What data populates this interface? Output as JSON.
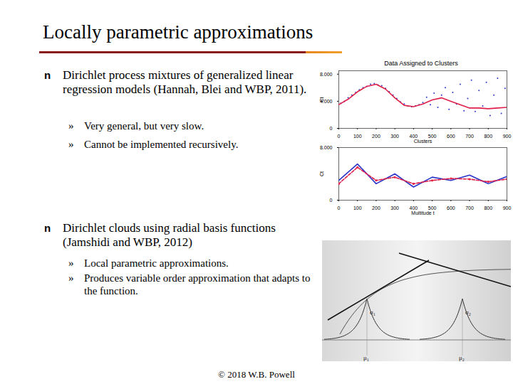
{
  "slide": {
    "title": "Locally parametric approximations",
    "bullet": "n",
    "sub_bullet": "»",
    "bullets": [
      {
        "text": "Dirichlet process mixtures of generalized linear regression models (Hannah, Blei and WBP, 2011).",
        "sub": [
          "Very general, but very slow.",
          "Cannot be implemented recursively."
        ]
      },
      {
        "text": "Dirichlet clouds using radial basis functions (Jamshidi and WBP, 2012)",
        "sub": [
          "Local parametric approximations.",
          "Produces variable order approximation that adapts to the function."
        ]
      }
    ],
    "footer": "© 2018 W.B. Powell"
  },
  "chart_data": [
    {
      "type": "scatter",
      "title": "Data Assigned to Clusters",
      "xlabel": "Clusters",
      "ylabel": "Ct",
      "xlim": [
        0,
        900
      ],
      "xticks": [
        0,
        100,
        200,
        300,
        400,
        500,
        600,
        700,
        800,
        900
      ],
      "ylim": [
        0,
        8.5
      ],
      "yticks": [
        0,
        {
          "value": 4,
          "label": "4.000"
        },
        {
          "value": 8,
          "label": "8.000"
        }
      ],
      "series": [
        {
          "type": "scatter",
          "color": "#2a35c8",
          "marker": "dot",
          "x": [
            10,
            30,
            50,
            70,
            90,
            110,
            130,
            150,
            170,
            190,
            210,
            230,
            250,
            270,
            290,
            310,
            330,
            350,
            370,
            390,
            410,
            430,
            450,
            470,
            490,
            510,
            530,
            550,
            570,
            590,
            610,
            630,
            650,
            670,
            690,
            710,
            730,
            750,
            770,
            790,
            810,
            830,
            850,
            870,
            890
          ],
          "values": [
            3.7,
            4.0,
            4.5,
            4.9,
            5.3,
            5.7,
            6.0,
            6.2,
            6.5,
            6.6,
            6.4,
            6.3,
            5.9,
            5.4,
            4.9,
            4.4,
            3.9,
            3.6,
            3.3,
            3.2,
            3.3,
            3.5,
            3.8,
            4.6,
            3.5,
            5.2,
            3.1,
            4.9,
            6.0,
            2.8,
            5.3,
            3.6,
            6.5,
            2.6,
            4.4,
            7.1,
            2.5,
            5.6,
            3.3,
            6.8,
            1.9,
            4.9,
            7.4,
            2.2,
            5.9
          ]
        },
        {
          "type": "line",
          "color": "#e0204a",
          "line_style": "solid",
          "x": [
            0,
            50,
            100,
            150,
            200,
            250,
            300,
            350,
            400,
            450,
            500,
            550,
            600,
            650,
            700,
            750,
            800,
            850,
            900
          ],
          "values": [
            3.5,
            4.3,
            5.4,
            6.2,
            6.5,
            5.8,
            4.5,
            3.4,
            3.2,
            3.6,
            4.2,
            4.5,
            4.0,
            3.5,
            3.0,
            3.0,
            2.9,
            3.0,
            3.1
          ]
        }
      ]
    },
    {
      "type": "line",
      "xlabel": "Multitude t",
      "ylabel": "Ct",
      "xlim": [
        0,
        900
      ],
      "xticks": [
        0,
        100,
        200,
        300,
        400,
        500,
        600,
        700,
        800,
        900
      ],
      "ylim": [
        0,
        8
      ],
      "yticks": [
        0,
        {
          "value": 8,
          "label": "8.000"
        }
      ],
      "series": [
        {
          "type": "line",
          "color": "#2a35c8",
          "line_style": "solid",
          "x": [
            0,
            100,
            200,
            300,
            400,
            500,
            600,
            700,
            800,
            900
          ],
          "values": [
            3.0,
            5.5,
            2.5,
            4.0,
            2.0,
            3.5,
            3.0,
            3.8,
            2.5,
            3.6
          ]
        },
        {
          "type": "line",
          "color": "#e0204a",
          "line_style": "dashed",
          "marker": "dot",
          "x": [
            0,
            100,
            200,
            300,
            400,
            500,
            600,
            700,
            800,
            900
          ],
          "values": [
            2.5,
            5.0,
            3.0,
            3.5,
            2.5,
            3.0,
            3.3,
            3.2,
            2.8,
            3.2
          ]
        }
      ]
    }
  ],
  "diagram": {
    "labels": [
      "σ1",
      "σ2",
      "μ1",
      "μ2"
    ]
  }
}
